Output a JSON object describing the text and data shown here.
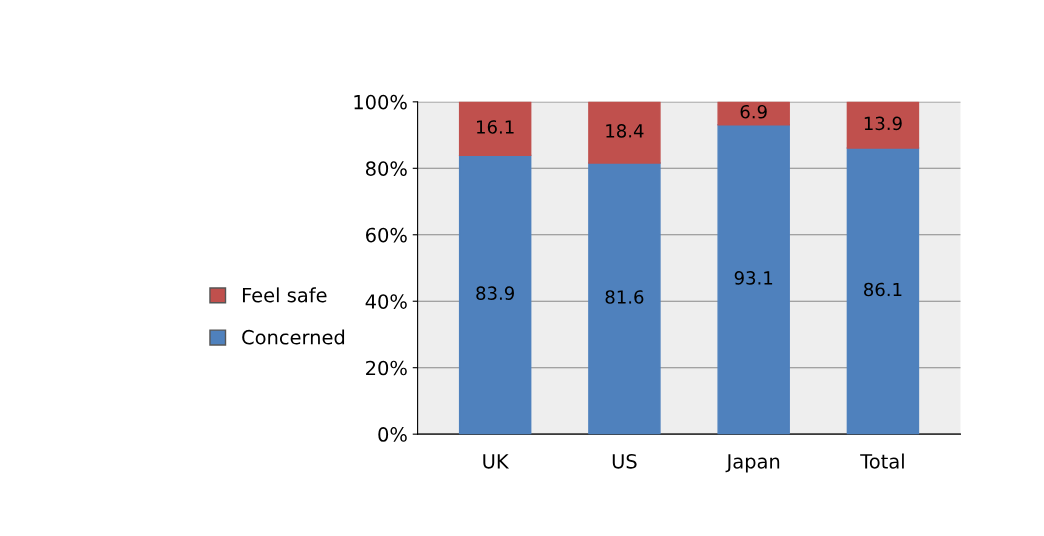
{
  "chart_data": {
    "type": "bar",
    "stacked": true,
    "categories": [
      "UK",
      "US",
      "Japan",
      "Total"
    ],
    "series": [
      {
        "name": "Concerned",
        "color": "#4f81bd",
        "values": [
          83.9,
          81.6,
          93.1,
          86.1
        ]
      },
      {
        "name": "Feel safe",
        "color": "#c0504d",
        "values": [
          16.1,
          18.4,
          6.9,
          13.9
        ]
      }
    ],
    "ylim": [
      0,
      100
    ],
    "yticks": [
      {
        "value": 0,
        "label": "0%"
      },
      {
        "value": 20,
        "label": "20%"
      },
      {
        "value": 40,
        "label": "40%"
      },
      {
        "value": 60,
        "label": "60%"
      },
      {
        "value": 80,
        "label": "80%"
      },
      {
        "value": 100,
        "label": "100%"
      }
    ],
    "grid": "y",
    "legend": "left",
    "data_labels": true
  }
}
